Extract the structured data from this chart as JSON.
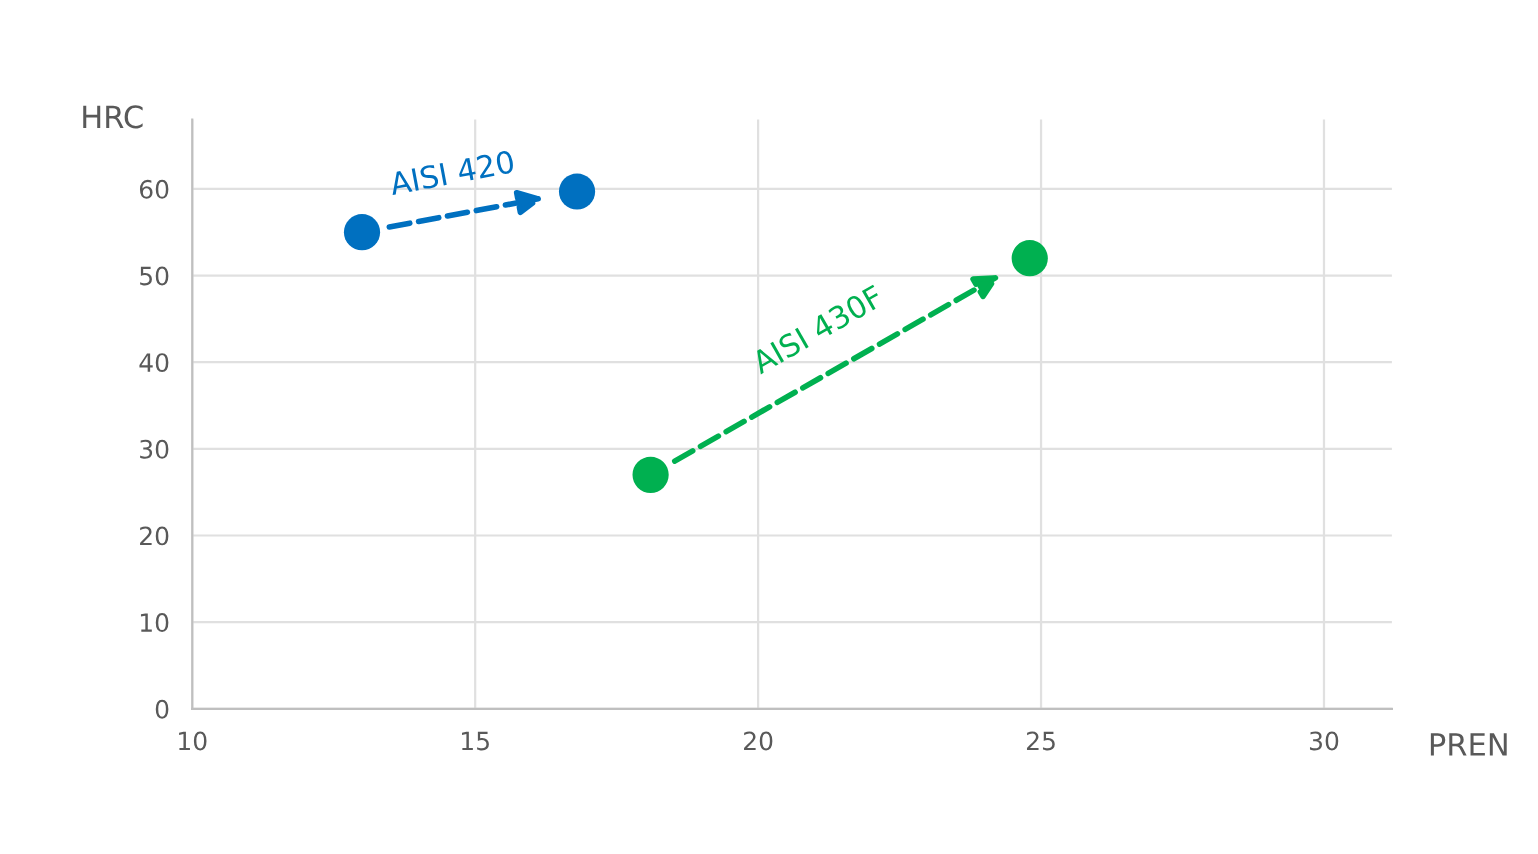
{
  "chart_data": {
    "type": "scatter",
    "xlabel": "PREN",
    "ylabel": "HRC",
    "series": [
      {
        "name": "AISI 420",
        "color": "#0070c0",
        "x": [
          13.0,
          16.8
        ],
        "values": [
          55,
          59.7
        ]
      },
      {
        "name": "AISI 430F",
        "color": "#00b050",
        "x": [
          18.1,
          24.8
        ],
        "values": [
          27,
          52
        ]
      }
    ],
    "xlim": [
      10,
      31.2
    ],
    "xticks": [
      10,
      15,
      20,
      25,
      30
    ],
    "ylim": [
      0,
      68
    ],
    "yticks": [
      0,
      10,
      20,
      30,
      40,
      50,
      60
    ],
    "grid": true,
    "marker": "circle",
    "line_style": "dashed",
    "legend": false
  }
}
